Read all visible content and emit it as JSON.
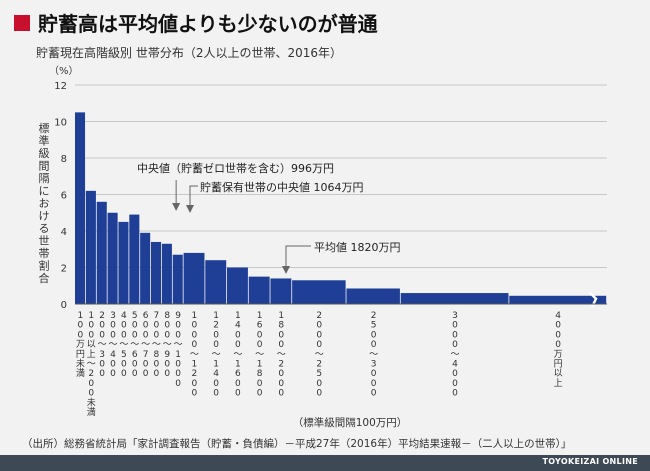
{
  "headline": "貯蓄高は平均値よりも少ないのが普通",
  "subtitle": "貯蓄現在高階級別 世帯分布（2人以上の世帯、2016年）",
  "source": "（出所）総務省統計局「家計調査報告（貯蓄・負債編）－平成27年（2016年）平均結果速報－（二人以上の世帯）」",
  "credit": "TOYOKEIZAI ONLINE",
  "colors": {
    "bar": "#1f3f97",
    "accent": "#c8102e",
    "footer": "#3d4a55"
  },
  "chart_data": {
    "type": "bar",
    "y_unit_label": "（%）",
    "ylabel": "標準級間隔における世帯割合",
    "xlabel": "（標準級間隔100万円）",
    "ylim": [
      0,
      12
    ],
    "yticks": [
      "0",
      "2",
      "4",
      "6",
      "8",
      "10",
      "12"
    ],
    "grid": true,
    "bins": [
      {
        "label": "100万円未満",
        "from": 0,
        "to": 100,
        "value": 10.5
      },
      {
        "label": "100以上～200未満",
        "from": 100,
        "to": 200,
        "value": 6.2
      },
      {
        "label": "200～300",
        "from": 200,
        "to": 300,
        "value": 5.6
      },
      {
        "label": "300～400",
        "from": 300,
        "to": 400,
        "value": 5.0
      },
      {
        "label": "400～500",
        "from": 400,
        "to": 500,
        "value": 4.5
      },
      {
        "label": "500～600",
        "from": 500,
        "to": 600,
        "value": 4.9
      },
      {
        "label": "600～700",
        "from": 600,
        "to": 700,
        "value": 3.9
      },
      {
        "label": "700～800",
        "from": 700,
        "to": 800,
        "value": 3.4
      },
      {
        "label": "800～900",
        "from": 800,
        "to": 900,
        "value": 3.3
      },
      {
        "label": "900～1000",
        "from": 900,
        "to": 1000,
        "value": 2.7
      },
      {
        "label": "1000～1200",
        "from": 1000,
        "to": 1200,
        "value": 2.8
      },
      {
        "label": "1200～1400",
        "from": 1200,
        "to": 1400,
        "value": 2.4
      },
      {
        "label": "1400～1600",
        "from": 1400,
        "to": 1600,
        "value": 2.0
      },
      {
        "label": "1600～1800",
        "from": 1600,
        "to": 1800,
        "value": 1.5
      },
      {
        "label": "1800～2000",
        "from": 1800,
        "to": 2000,
        "value": 1.4
      },
      {
        "label": "2000～2500",
        "from": 2000,
        "to": 2500,
        "value": 1.3
      },
      {
        "label": "2500～3000",
        "from": 2500,
        "to": 3000,
        "value": 0.85
      },
      {
        "label": "3000～4000",
        "from": 3000,
        "to": 4000,
        "value": 0.6
      },
      {
        "label": "4000万円以上",
        "from": 4000,
        "to": 4900,
        "value": 0.45
      }
    ],
    "annotations": [
      {
        "text": "中央値（貯蓄ゼロ世帯を含む）996万円",
        "x": 996
      },
      {
        "text": "貯蓄保有世帯の中央値 1064万円",
        "x": 1064
      },
      {
        "text": "平均値 1820万円",
        "x": 1820
      }
    ]
  }
}
